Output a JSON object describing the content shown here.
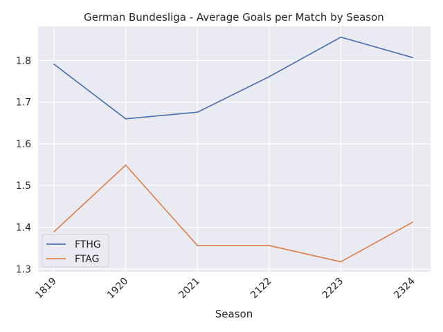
{
  "chart_data": {
    "type": "line",
    "title": "German Bundesliga - Average Goals per Match by Season",
    "xlabel": "Season",
    "ylabel": "",
    "categories": [
      "1819",
      "1920",
      "2021",
      "2122",
      "2223",
      "2324"
    ],
    "series": [
      {
        "name": "FTHG",
        "values": [
          1.791,
          1.66,
          1.676,
          1.761,
          1.856,
          1.807
        ],
        "color": "#4c72b0"
      },
      {
        "name": "FTAG",
        "values": [
          1.389,
          1.549,
          1.356,
          1.356,
          1.317,
          1.412
        ],
        "color": "#dd8452"
      }
    ],
    "ylim": [
      1.293,
      1.882
    ],
    "yticks": [
      "1.3",
      "1.4",
      "1.5",
      "1.6",
      "1.7",
      "1.8"
    ],
    "grid": true,
    "legend_position": "lower-left",
    "colors": {
      "background": "#eaeaf2",
      "grid": "#ffffff",
      "text": "#262626"
    }
  }
}
